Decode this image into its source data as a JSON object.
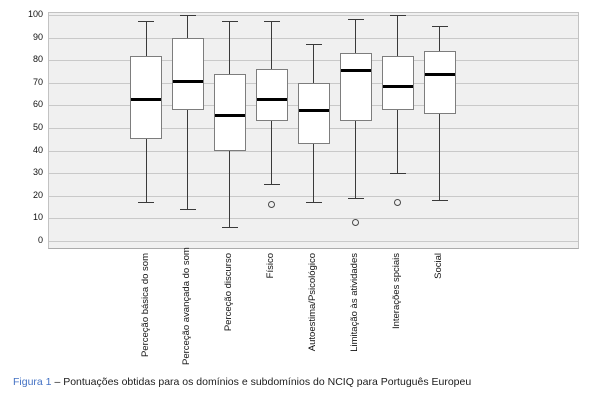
{
  "figure": {
    "caption_label": "Figura 1",
    "caption_text": " – Pontuações obtidas para os domínios e subdomínios do NCIQ para Português Europeu"
  },
  "chart_data": {
    "type": "boxplot",
    "title": "",
    "xlabel": "",
    "ylabel": "",
    "ylim": [
      0,
      100
    ],
    "grid": "horizontal",
    "legend": "none",
    "plot_bg": "#f0f0f0",
    "gridline_color": "#c9c9c9",
    "box_fill": "#ffffff",
    "box_border": "#7d7d7d",
    "median_color": "#000000",
    "whisker_color": "#3a3a3a",
    "caption_accent_color": "#4472c4",
    "yticks": [
      0,
      10,
      20,
      30,
      40,
      50,
      60,
      70,
      80,
      90,
      100
    ],
    "ytick_labels": [
      "0",
      "10",
      "20",
      "30",
      "40",
      "50",
      "60",
      "70",
      "80",
      "90",
      "100"
    ],
    "categories": [
      "Perceção básica do som",
      "Perceção avançada do som",
      "Perceção discurso",
      "Físico",
      "Autoestima/Psicológico",
      "Limitação às atividades",
      "Interações spciais",
      "Social"
    ],
    "series": [
      {
        "name": "Perceção básica do som",
        "whisker_low": 17,
        "q1": 45,
        "median": 63,
        "q3": 82,
        "whisker_high": 97,
        "outliers": []
      },
      {
        "name": "Perceção avançada do som",
        "whisker_low": 14,
        "q1": 58,
        "median": 71,
        "q3": 90,
        "whisker_high": 100,
        "outliers": []
      },
      {
        "name": "Perceção discurso",
        "whisker_low": 6,
        "q1": 40,
        "median": 56,
        "q3": 74,
        "whisker_high": 97,
        "outliers": []
      },
      {
        "name": "Físico",
        "whisker_low": 25,
        "q1": 53,
        "median": 63,
        "q3": 76,
        "whisker_high": 97,
        "outliers": [
          16
        ]
      },
      {
        "name": "Autoestima/Psicológico",
        "whisker_low": 17,
        "q1": 43,
        "median": 58,
        "q3": 70,
        "whisker_high": 87,
        "outliers": []
      },
      {
        "name": "Limitação às atividades",
        "whisker_low": 19,
        "q1": 53,
        "median": 76,
        "q3": 83,
        "whisker_high": 98,
        "outliers": [
          8
        ]
      },
      {
        "name": "Interações spciais",
        "whisker_low": 30,
        "q1": 58,
        "median": 69,
        "q3": 82,
        "whisker_high": 100,
        "outliers": [
          17
        ]
      },
      {
        "name": "Social",
        "whisker_low": 18,
        "q1": 56,
        "median": 74,
        "q3": 84,
        "whisker_high": 95,
        "outliers": []
      }
    ]
  }
}
